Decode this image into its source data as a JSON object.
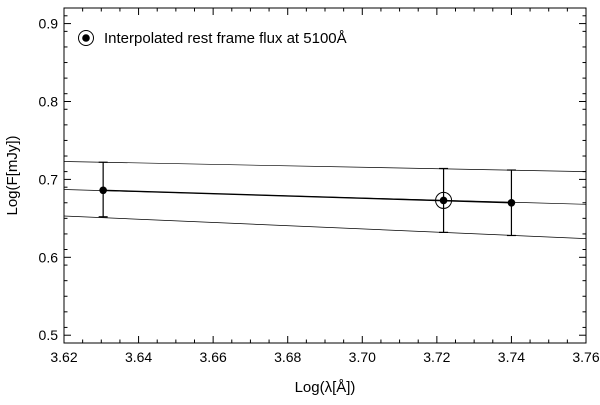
{
  "chart_data": {
    "type": "scatter",
    "xlabel": "Log(λ[Å])",
    "ylabel": "Log(F[mJy])",
    "xlim": [
      3.62,
      3.76
    ],
    "ylim": [
      0.49,
      0.92
    ],
    "x_ticks": [
      3.62,
      3.64,
      3.66,
      3.68,
      3.7,
      3.72,
      3.74,
      3.76
    ],
    "y_ticks": [
      0.5,
      0.6,
      0.7,
      0.8,
      0.9
    ],
    "x_tick_labels": [
      "3.62",
      "3.64",
      "3.66",
      "3.68",
      "3.70",
      "3.72",
      "3.74",
      "3.76"
    ],
    "y_tick_labels": [
      "0.5",
      "0.6",
      "0.7",
      "0.8",
      "0.9"
    ],
    "grid": false,
    "legend": {
      "position": "top-left",
      "label": "Interpolated rest frame flux at 5100Å"
    },
    "series": [
      {
        "marker": "filled-circle",
        "connected": true,
        "points": [
          {
            "x": 3.6305,
            "y": 0.686,
            "y_upper": 0.722,
            "y_lower": 0.652
          },
          {
            "x": 3.74,
            "y": 0.67,
            "y_upper": 0.712,
            "y_lower": 0.628
          }
        ]
      },
      {
        "marker": "circled-dot",
        "points": [
          {
            "x": 3.7218,
            "y": 0.673,
            "y_upper": 0.714,
            "y_lower": 0.632
          }
        ]
      }
    ],
    "trend_lines": [
      {
        "role": "upper",
        "x": [
          3.62,
          3.76
        ],
        "y": [
          0.723,
          0.71
        ]
      },
      {
        "role": "fit",
        "x": [
          3.62,
          3.76
        ],
        "y": [
          0.687,
          0.668
        ]
      },
      {
        "role": "lower",
        "x": [
          3.62,
          3.76
        ],
        "y": [
          0.653,
          0.624
        ]
      }
    ]
  }
}
